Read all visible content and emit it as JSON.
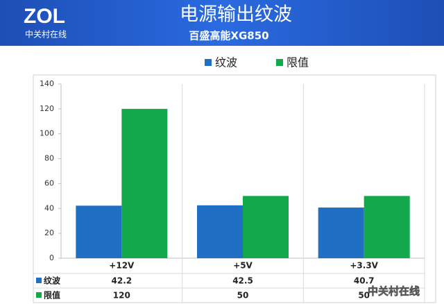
{
  "header": {
    "logo": "ZOL",
    "logo_subtitle": "中关村在线"
  },
  "watermark": "中关村在线",
  "chart_data": {
    "type": "bar",
    "title": "电源输出纹波",
    "subtitle": "百盛高能XG850",
    "categories": [
      "+12V",
      "+5V",
      "+3.3V"
    ],
    "series": [
      {
        "name": "纹波",
        "color": "#1f6fc5",
        "values": [
          42.2,
          42.5,
          40.7
        ]
      },
      {
        "name": "限值",
        "color": "#12a84c",
        "values": [
          120,
          50,
          50
        ]
      }
    ],
    "ylim": [
      0,
      140
    ],
    "yticks": [
      0,
      20,
      40,
      60,
      80,
      100,
      120,
      140
    ],
    "grid": false,
    "legend": "top",
    "data_table": true
  }
}
